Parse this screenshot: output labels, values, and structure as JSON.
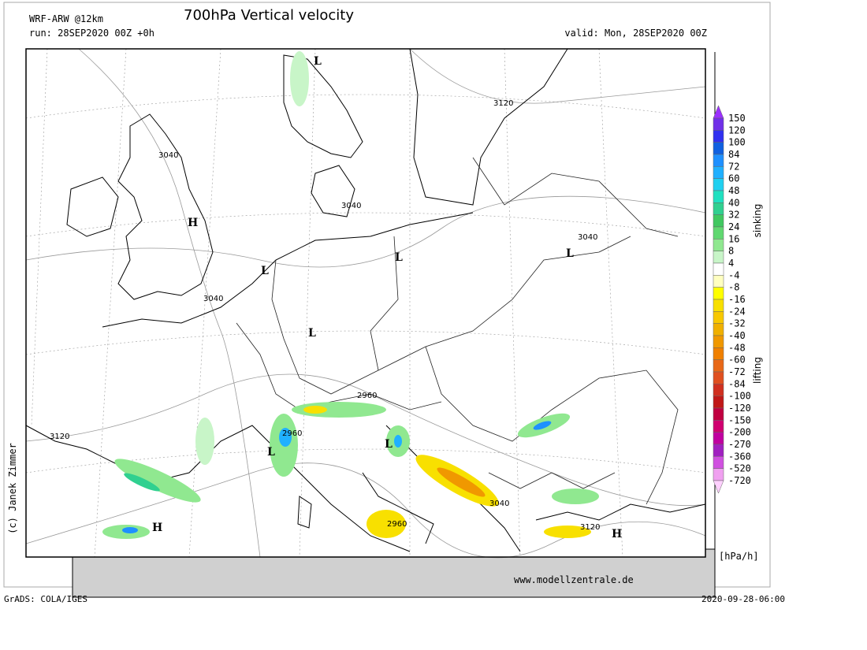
{
  "header": {
    "model": "WRF-ARW @12km",
    "title": "700hPa Vertical velocity",
    "run": "run: 28SEP2020 00Z +0h",
    "valid": "valid: Mon, 28SEP2020 00Z"
  },
  "map": {
    "labels": [
      "L",
      "3120",
      "3040",
      "H",
      "3040",
      "3040",
      "L",
      "L",
      "L",
      "3040",
      "L",
      "2960",
      "2960",
      "3120",
      "L",
      "L",
      "3040",
      "2960",
      "3120",
      "H",
      "H"
    ]
  },
  "legend": {
    "levels": [
      "150",
      "120",
      "100",
      "84",
      "72",
      "60",
      "48",
      "40",
      "32",
      "24",
      "16",
      "8",
      "4",
      "-4",
      "-8",
      "-16",
      "-24",
      "-32",
      "-40",
      "-48",
      "-60",
      "-72",
      "-84",
      "-100",
      "-120",
      "-150",
      "-200",
      "-270",
      "-360",
      "-520",
      "-720"
    ],
    "colors": [
      "#9b30ff",
      "#7030e8",
      "#3030f0",
      "#1060e0",
      "#1e90ff",
      "#20b0ff",
      "#20d0f0",
      "#20e0c0",
      "#30d090",
      "#40c860",
      "#60d870",
      "#90e890",
      "#c8f5c8",
      "#ffffff",
      "#ffffc0",
      "#ffff00",
      "#f8e000",
      "#f8c800",
      "#f0b000",
      "#f09800",
      "#f08000",
      "#e86818",
      "#e05020",
      "#d03020",
      "#c01818",
      "#c00040",
      "#d00070",
      "#c000a0",
      "#a020c0",
      "#d050e0",
      "#f0a0f0",
      "#ffd0ff"
    ],
    "upper_label": "sinking",
    "lower_label": "lifting",
    "unit": "[hPa/h]"
  },
  "footer": {
    "credit": "(c) Janek Zimmer",
    "url": "www.modellzentrale.de",
    "grads": "GrADS: COLA/IGES",
    "timestamp": "2020-09-28-06:00"
  }
}
